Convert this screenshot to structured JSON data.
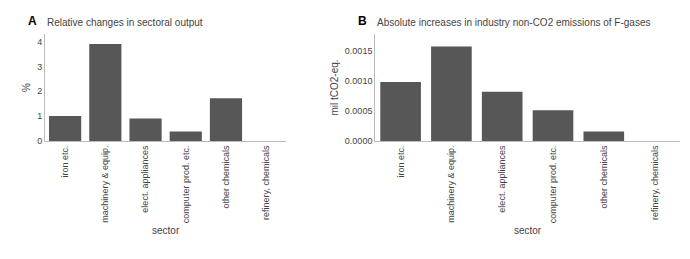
{
  "chart_data": [
    {
      "type": "bar",
      "title": "Relative changes in sectoral output",
      "annotations": [
        "A"
      ],
      "categories": [
        "iron etc.",
        "machinery & equip.",
        "elect. appliances",
        "computer prod. etc.",
        "other chemicals",
        "refinery, chemicals"
      ],
      "values": [
        1.0,
        3.9,
        0.9,
        0.38,
        1.72,
        0.0
      ],
      "color": "#575757",
      "xlabel": "sector",
      "ylabel": "%",
      "ylim": [
        0,
        4.3
      ],
      "yticks": [
        0,
        1,
        2,
        3,
        4
      ],
      "grid": false
    },
    {
      "type": "bar",
      "title": "Absolute increases in industry non-CO2 emissions of F-gases",
      "annotations": [
        "B"
      ],
      "categories": [
        "iron etc.",
        "machinery & equip.",
        "elect. appliances",
        "computer prod. etc.",
        "other chemicals",
        "refinery, chemicals"
      ],
      "values": [
        0.00098,
        0.00157,
        0.00082,
        0.00051,
        0.00016,
        0.0
      ],
      "color": "#575757",
      "xlabel": "sector",
      "ylabel": "mil tCO2-eq.",
      "ylim": [
        0,
        0.00178
      ],
      "yticks": [
        {
          "value": 0.0,
          "label": "0.0000"
        },
        {
          "value": 0.0005,
          "label": "0.0005"
        },
        {
          "value": 0.001,
          "label": "0.0010"
        },
        {
          "value": 0.0015,
          "label": "0.0015"
        }
      ],
      "grid": false
    }
  ]
}
